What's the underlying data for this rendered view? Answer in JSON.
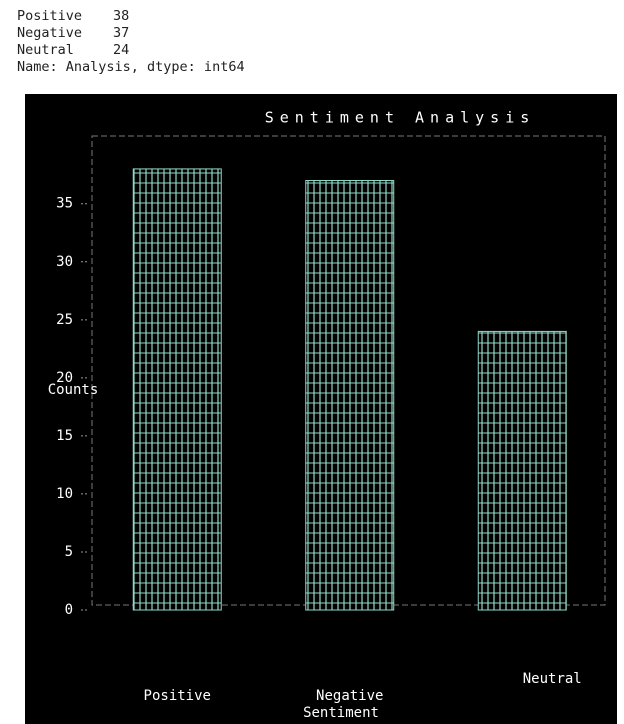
{
  "output": {
    "rows": [
      {
        "label": "Positive",
        "value": 38
      },
      {
        "label": "Negative",
        "value": 37
      },
      {
        "label": "Neutral",
        "value": 24
      }
    ],
    "footer": "Name: Analysis, dtype: int64"
  },
  "chart_data": {
    "type": "bar",
    "title": "Sentiment Analysis",
    "xlabel": "Sentiment",
    "ylabel": "Counts",
    "categories": [
      "Positive",
      "Negative",
      "Neutral"
    ],
    "values": [
      38,
      37,
      24
    ],
    "color": "#8fd8c8",
    "ylim": [
      0,
      40
    ],
    "yticks": [
      0,
      5,
      10,
      15,
      20,
      25,
      30,
      35
    ]
  }
}
